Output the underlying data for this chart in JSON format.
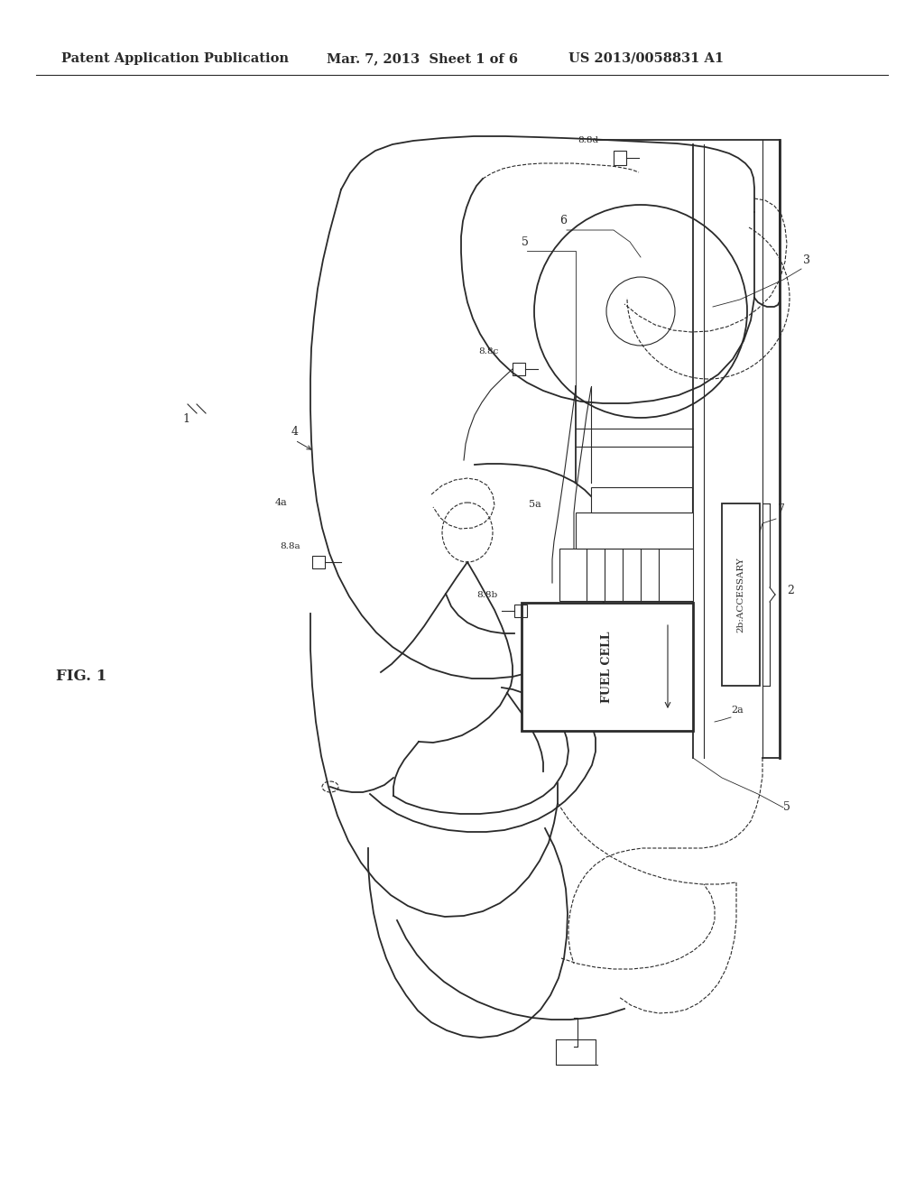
{
  "bg_color": "#ffffff",
  "line_color": "#2a2a2a",
  "header_text": "Patent Application Publication",
  "header_date": "Mar. 7, 2013  Sheet 1 of 6",
  "header_patent": "US 2013/0058831 A1",
  "fig_label": "FIG. 1",
  "title_fontsize": 11,
  "label_fontsize": 9,
  "fig_label_fontsize": 12,
  "lw_thin": 0.8,
  "lw_med": 1.3,
  "lw_thick": 2.0
}
